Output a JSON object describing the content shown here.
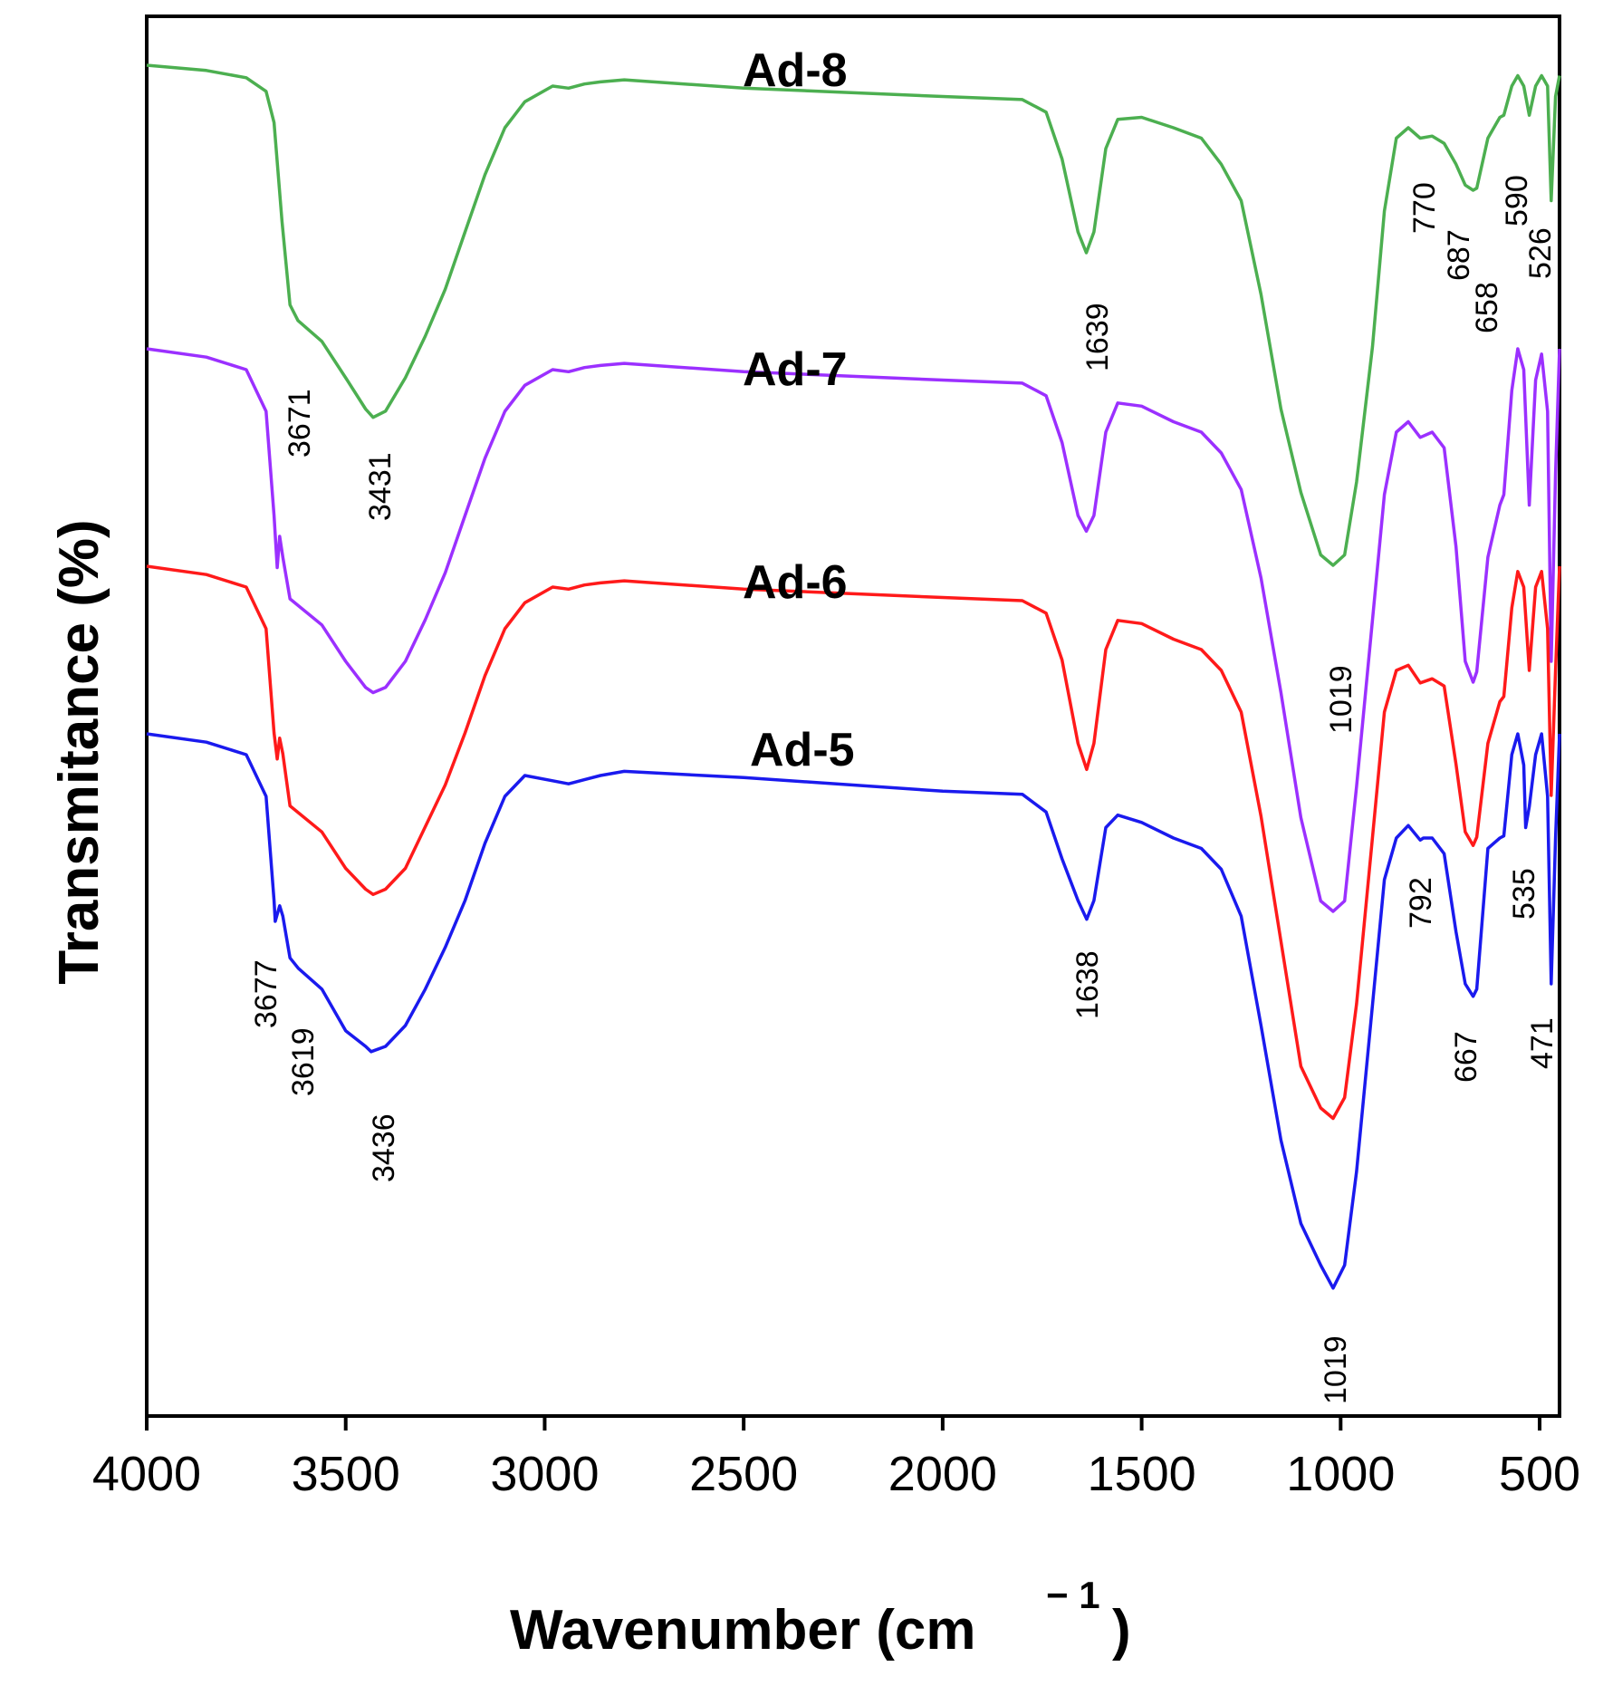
{
  "chart_data": {
    "type": "line",
    "title": "",
    "xlabel": "Wavenumber (cm",
    "xlabel_sup": "− 1",
    "xlabel_close": ")",
    "ylabel": "Transmitance (%)",
    "xlim": [
      4000,
      450
    ],
    "x_reversed": true,
    "y_ticks_shown": false,
    "x_ticks": [
      4000,
      3500,
      3000,
      2500,
      2000,
      1500,
      1000,
      500
    ],
    "x_tick_labels": [
      "4000",
      "3500",
      "3000",
      "2500",
      "2000",
      "1500",
      "1000",
      "500"
    ],
    "series": [
      {
        "name": "Ad-8",
        "label": "Ad-8",
        "color": "#4caf50",
        "label_x": 2300,
        "label_y": 100,
        "points": [
          [
            4000,
            0
          ],
          [
            3850,
            5
          ],
          [
            3750,
            12
          ],
          [
            3700,
            25
          ],
          [
            3680,
            55
          ],
          [
            3660,
            150
          ],
          [
            3640,
            230
          ],
          [
            3620,
            245
          ],
          [
            3560,
            265
          ],
          [
            3500,
            300
          ],
          [
            3450,
            330
          ],
          [
            3431,
            338
          ],
          [
            3400,
            332
          ],
          [
            3350,
            300
          ],
          [
            3300,
            260
          ],
          [
            3250,
            215
          ],
          [
            3200,
            160
          ],
          [
            3150,
            105
          ],
          [
            3100,
            60
          ],
          [
            3050,
            35
          ],
          [
            2980,
            20
          ],
          [
            2940,
            22
          ],
          [
            2900,
            18
          ],
          [
            2860,
            16
          ],
          [
            2800,
            14
          ],
          [
            2500,
            22
          ],
          [
            2000,
            30
          ],
          [
            1800,
            33
          ],
          [
            1740,
            45
          ],
          [
            1700,
            90
          ],
          [
            1660,
            160
          ],
          [
            1639,
            180
          ],
          [
            1620,
            160
          ],
          [
            1590,
            80
          ],
          [
            1560,
            52
          ],
          [
            1500,
            50
          ],
          [
            1420,
            60
          ],
          [
            1350,
            70
          ],
          [
            1300,
            95
          ],
          [
            1250,
            130
          ],
          [
            1200,
            220
          ],
          [
            1150,
            330
          ],
          [
            1100,
            410
          ],
          [
            1050,
            470
          ],
          [
            1019,
            480
          ],
          [
            990,
            470
          ],
          [
            960,
            400
          ],
          [
            920,
            270
          ],
          [
            890,
            140
          ],
          [
            860,
            70
          ],
          [
            830,
            60
          ],
          [
            800,
            70
          ],
          [
            770,
            68
          ],
          [
            740,
            75
          ],
          [
            710,
            95
          ],
          [
            687,
            115
          ],
          [
            667,
            120
          ],
          [
            658,
            118
          ],
          [
            630,
            70
          ],
          [
            600,
            50
          ],
          [
            590,
            48
          ],
          [
            570,
            20
          ],
          [
            555,
            10
          ],
          [
            540,
            20
          ],
          [
            526,
            48
          ],
          [
            510,
            20
          ],
          [
            495,
            10
          ],
          [
            480,
            20
          ],
          [
            471,
            130
          ],
          [
            460,
            30
          ],
          [
            450,
            10
          ]
        ]
      },
      {
        "name": "Ad-7",
        "label": "Ad-7",
        "color": "#9b30ff",
        "label_x": 2280,
        "label_y": 100,
        "points": [
          [
            4000,
            0
          ],
          [
            3850,
            8
          ],
          [
            3750,
            20
          ],
          [
            3700,
            60
          ],
          [
            3680,
            160
          ],
          [
            3672,
            210
          ],
          [
            3666,
            180
          ],
          [
            3658,
            200
          ],
          [
            3640,
            240
          ],
          [
            3560,
            265
          ],
          [
            3500,
            300
          ],
          [
            3450,
            325
          ],
          [
            3431,
            330
          ],
          [
            3400,
            325
          ],
          [
            3350,
            300
          ],
          [
            3300,
            260
          ],
          [
            3250,
            215
          ],
          [
            3200,
            160
          ],
          [
            3150,
            105
          ],
          [
            3100,
            60
          ],
          [
            3050,
            35
          ],
          [
            2980,
            20
          ],
          [
            2940,
            22
          ],
          [
            2900,
            18
          ],
          [
            2860,
            16
          ],
          [
            2800,
            14
          ],
          [
            2500,
            22
          ],
          [
            2000,
            30
          ],
          [
            1800,
            33
          ],
          [
            1740,
            45
          ],
          [
            1700,
            90
          ],
          [
            1660,
            160
          ],
          [
            1639,
            175
          ],
          [
            1620,
            160
          ],
          [
            1590,
            80
          ],
          [
            1560,
            52
          ],
          [
            1500,
            55
          ],
          [
            1420,
            70
          ],
          [
            1350,
            80
          ],
          [
            1300,
            100
          ],
          [
            1250,
            135
          ],
          [
            1200,
            220
          ],
          [
            1150,
            330
          ],
          [
            1100,
            450
          ],
          [
            1050,
            530
          ],
          [
            1019,
            540
          ],
          [
            990,
            530
          ],
          [
            960,
            420
          ],
          [
            920,
            260
          ],
          [
            890,
            140
          ],
          [
            860,
            80
          ],
          [
            830,
            70
          ],
          [
            800,
            85
          ],
          [
            770,
            80
          ],
          [
            740,
            95
          ],
          [
            710,
            190
          ],
          [
            687,
            300
          ],
          [
            667,
            320
          ],
          [
            658,
            310
          ],
          [
            630,
            200
          ],
          [
            600,
            150
          ],
          [
            590,
            140
          ],
          [
            570,
            40
          ],
          [
            555,
            0
          ],
          [
            540,
            20
          ],
          [
            526,
            150
          ],
          [
            510,
            30
          ],
          [
            495,
            5
          ],
          [
            480,
            60
          ],
          [
            471,
            300
          ],
          [
            460,
            120
          ],
          [
            450,
            0
          ]
        ]
      },
      {
        "name": "Ad-6",
        "label": "Ad-6",
        "color": "#ff1a1a",
        "label_x": 2280,
        "label_y": 100,
        "points": [
          [
            4000,
            0
          ],
          [
            3850,
            8
          ],
          [
            3750,
            20
          ],
          [
            3700,
            60
          ],
          [
            3680,
            160
          ],
          [
            3672,
            185
          ],
          [
            3666,
            165
          ],
          [
            3658,
            180
          ],
          [
            3640,
            230
          ],
          [
            3560,
            255
          ],
          [
            3500,
            290
          ],
          [
            3450,
            310
          ],
          [
            3431,
            315
          ],
          [
            3400,
            310
          ],
          [
            3350,
            290
          ],
          [
            3300,
            250
          ],
          [
            3250,
            210
          ],
          [
            3200,
            160
          ],
          [
            3150,
            105
          ],
          [
            3100,
            60
          ],
          [
            3050,
            35
          ],
          [
            2980,
            20
          ],
          [
            2940,
            22
          ],
          [
            2900,
            18
          ],
          [
            2860,
            16
          ],
          [
            2800,
            14
          ],
          [
            2500,
            22
          ],
          [
            2000,
            30
          ],
          [
            1800,
            33
          ],
          [
            1740,
            45
          ],
          [
            1700,
            90
          ],
          [
            1660,
            170
          ],
          [
            1638,
            195
          ],
          [
            1620,
            170
          ],
          [
            1590,
            80
          ],
          [
            1560,
            52
          ],
          [
            1500,
            55
          ],
          [
            1420,
            70
          ],
          [
            1350,
            80
          ],
          [
            1300,
            100
          ],
          [
            1250,
            140
          ],
          [
            1200,
            240
          ],
          [
            1150,
            360
          ],
          [
            1100,
            480
          ],
          [
            1050,
            520
          ],
          [
            1019,
            530
          ],
          [
            990,
            510
          ],
          [
            960,
            420
          ],
          [
            920,
            260
          ],
          [
            890,
            140
          ],
          [
            860,
            100
          ],
          [
            830,
            95
          ],
          [
            800,
            112
          ],
          [
            770,
            108
          ],
          [
            740,
            115
          ],
          [
            710,
            190
          ],
          [
            687,
            255
          ],
          [
            667,
            268
          ],
          [
            658,
            260
          ],
          [
            630,
            170
          ],
          [
            600,
            130
          ],
          [
            590,
            125
          ],
          [
            570,
            40
          ],
          [
            555,
            5
          ],
          [
            540,
            20
          ],
          [
            526,
            100
          ],
          [
            510,
            20
          ],
          [
            495,
            5
          ],
          [
            480,
            60
          ],
          [
            471,
            220
          ],
          [
            460,
            100
          ],
          [
            450,
            0
          ]
        ]
      },
      {
        "name": "Ad-5",
        "label": "Ad-5",
        "color": "#1a1aee",
        "label_x": 2280,
        "label_y": 100,
        "points": [
          [
            4000,
            0
          ],
          [
            3850,
            8
          ],
          [
            3750,
            20
          ],
          [
            3700,
            60
          ],
          [
            3680,
            160
          ],
          [
            3677,
            180
          ],
          [
            3666,
            165
          ],
          [
            3658,
            175
          ],
          [
            3640,
            215
          ],
          [
            3619,
            225
          ],
          [
            3560,
            245
          ],
          [
            3500,
            285
          ],
          [
            3450,
            300
          ],
          [
            3436,
            305
          ],
          [
            3400,
            300
          ],
          [
            3350,
            280
          ],
          [
            3300,
            245
          ],
          [
            3250,
            205
          ],
          [
            3200,
            160
          ],
          [
            3150,
            105
          ],
          [
            3100,
            60
          ],
          [
            3050,
            40
          ],
          [
            2980,
            45
          ],
          [
            2940,
            48
          ],
          [
            2900,
            44
          ],
          [
            2860,
            40
          ],
          [
            2800,
            36
          ],
          [
            2500,
            42
          ],
          [
            2000,
            55
          ],
          [
            1800,
            58
          ],
          [
            1740,
            75
          ],
          [
            1700,
            120
          ],
          [
            1660,
            160
          ],
          [
            1638,
            178
          ],
          [
            1620,
            160
          ],
          [
            1590,
            90
          ],
          [
            1560,
            78
          ],
          [
            1500,
            85
          ],
          [
            1420,
            100
          ],
          [
            1350,
            110
          ],
          [
            1300,
            130
          ],
          [
            1250,
            175
          ],
          [
            1200,
            280
          ],
          [
            1150,
            390
          ],
          [
            1100,
            470
          ],
          [
            1050,
            510
          ],
          [
            1019,
            532
          ],
          [
            990,
            510
          ],
          [
            960,
            420
          ],
          [
            920,
            260
          ],
          [
            890,
            140
          ],
          [
            860,
            100
          ],
          [
            830,
            88
          ],
          [
            800,
            102
          ],
          [
            792,
            100
          ],
          [
            770,
            100
          ],
          [
            740,
            115
          ],
          [
            710,
            190
          ],
          [
            687,
            240
          ],
          [
            667,
            252
          ],
          [
            658,
            245
          ],
          [
            630,
            110
          ],
          [
            600,
            100
          ],
          [
            590,
            98
          ],
          [
            570,
            20
          ],
          [
            555,
            0
          ],
          [
            540,
            30
          ],
          [
            535,
            90
          ],
          [
            526,
            70
          ],
          [
            510,
            20
          ],
          [
            495,
            0
          ],
          [
            480,
            60
          ],
          [
            471,
            240
          ],
          [
            460,
            100
          ],
          [
            450,
            0
          ]
        ]
      }
    ],
    "peak_labels": [
      {
        "text": "3671",
        "x": 3700
      },
      {
        "text": "3431",
        "x": 3431
      },
      {
        "text": "1639",
        "x": 1639
      },
      {
        "text": "770",
        "x": 800
      },
      {
        "text": "687",
        "x": 715
      },
      {
        "text": "658",
        "x": 670
      },
      {
        "text": "590",
        "x": 590
      },
      {
        "text": "526",
        "x": 550
      },
      {
        "text": "1019",
        "x": 1019
      },
      {
        "text": "3677",
        "x": 3700
      },
      {
        "text": "3619",
        "x": 3610
      },
      {
        "text": "3436",
        "x": 3436
      },
      {
        "text": "1638",
        "x": 1638
      },
      {
        "text": "792",
        "x": 830
      },
      {
        "text": "535",
        "x": 535
      },
      {
        "text": "667",
        "x": 667
      },
      {
        "text": "471",
        "x": 471
      },
      {
        "text": "1019",
        "x": 1019
      }
    ]
  }
}
